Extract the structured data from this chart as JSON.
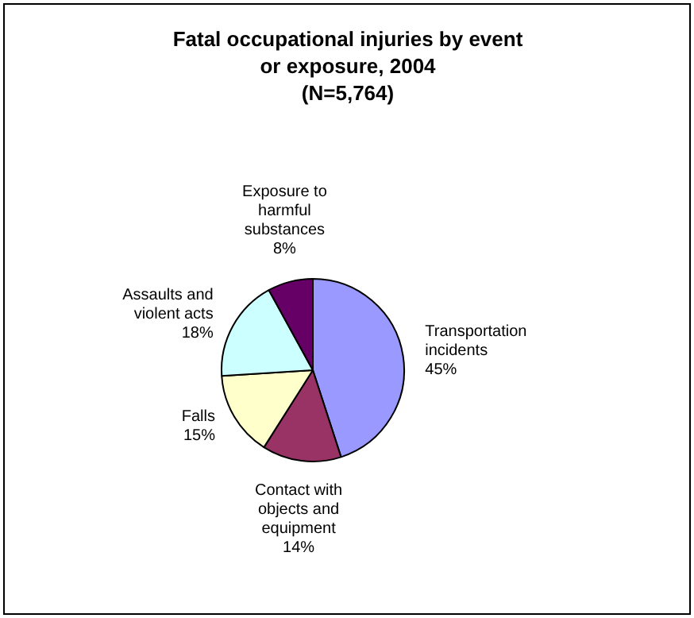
{
  "chart_data": {
    "type": "pie",
    "title": "Fatal occupational injuries by event or exposure, 2004",
    "subtitle": "(N=5,764)",
    "categories": [
      "Transportation incidents",
      "Contact with objects and equipment",
      "Falls",
      "Assaults and violent acts",
      "Exposure to harmful substances"
    ],
    "values": [
      45,
      14,
      15,
      18,
      8
    ],
    "colors": [
      "#9999ff",
      "#993366",
      "#ffffcc",
      "#ccffff",
      "#660066"
    ],
    "value_labels": [
      "45%",
      "14%",
      "15%",
      "18%",
      "8%"
    ],
    "legend": false
  }
}
